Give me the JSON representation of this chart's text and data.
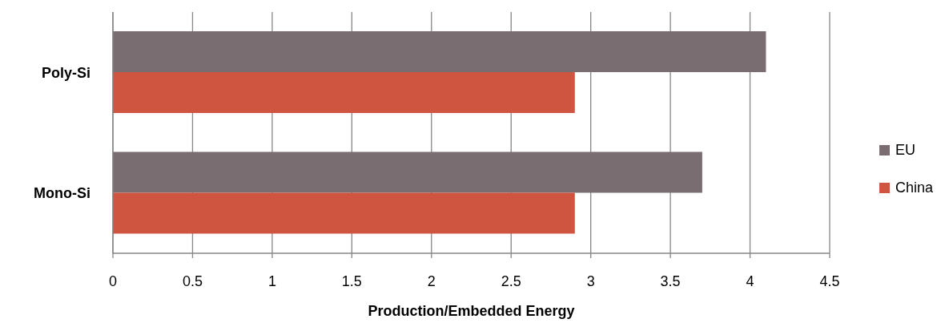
{
  "chart_data": {
    "type": "bar",
    "orientation": "horizontal",
    "xlabel": "Production/Embedded Energy",
    "categories": [
      "Poly-Si",
      "Mono-Si"
    ],
    "series": [
      {
        "name": "EU",
        "color": "#7a6d71",
        "values": [
          4.1,
          3.7
        ]
      },
      {
        "name": "China",
        "color": "#cf5540",
        "values": [
          2.9,
          2.9
        ]
      }
    ],
    "xlim": [
      0,
      4.5
    ],
    "xticks": [
      0,
      0.5,
      1,
      1.5,
      2,
      2.5,
      3,
      3.5,
      4,
      4.5
    ],
    "grid": "x",
    "legend": "right"
  }
}
